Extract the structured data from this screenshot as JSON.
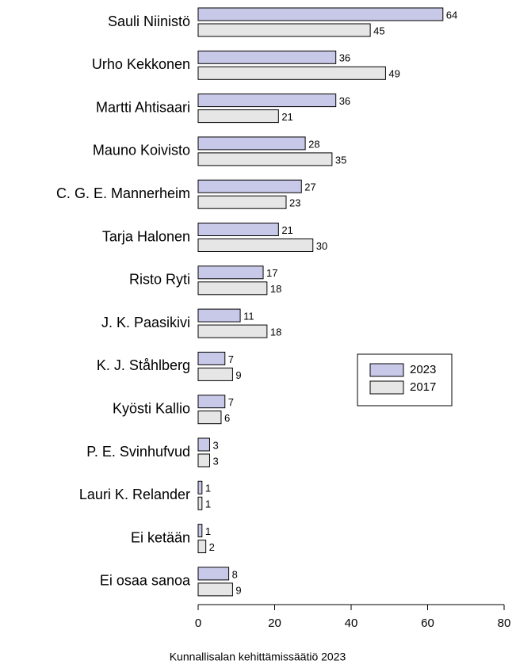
{
  "chart_data": {
    "type": "barh",
    "caption": "Kunnallisalan kehittämissäätiö 2023",
    "categories": [
      "Sauli Niinistö",
      "Urho Kekkonen",
      "Martti Ahtisaari",
      "Mauno Koivisto",
      "C. G. E. Mannerheim",
      "Tarja Halonen",
      "Risto Ryti",
      "J. K. Paasikivi",
      "K. J. Ståhlberg",
      "Kyösti Kallio",
      "P. E. Svinhufvud",
      "Lauri K. Relander",
      "Ei ketään",
      "Ei osaa sanoa"
    ],
    "series": [
      {
        "name": "2023",
        "color": "#c8c8e8",
        "values": [
          64,
          36,
          36,
          28,
          27,
          21,
          17,
          11,
          7,
          7,
          3,
          1,
          1,
          8
        ]
      },
      {
        "name": "2017",
        "color": "#e6e6e6",
        "values": [
          45,
          49,
          21,
          35,
          23,
          30,
          18,
          18,
          9,
          6,
          3,
          1,
          2,
          9
        ]
      }
    ],
    "xlim": [
      0,
      80
    ],
    "xticks": [
      0,
      20,
      40,
      60,
      80
    ],
    "legend": "center right"
  }
}
